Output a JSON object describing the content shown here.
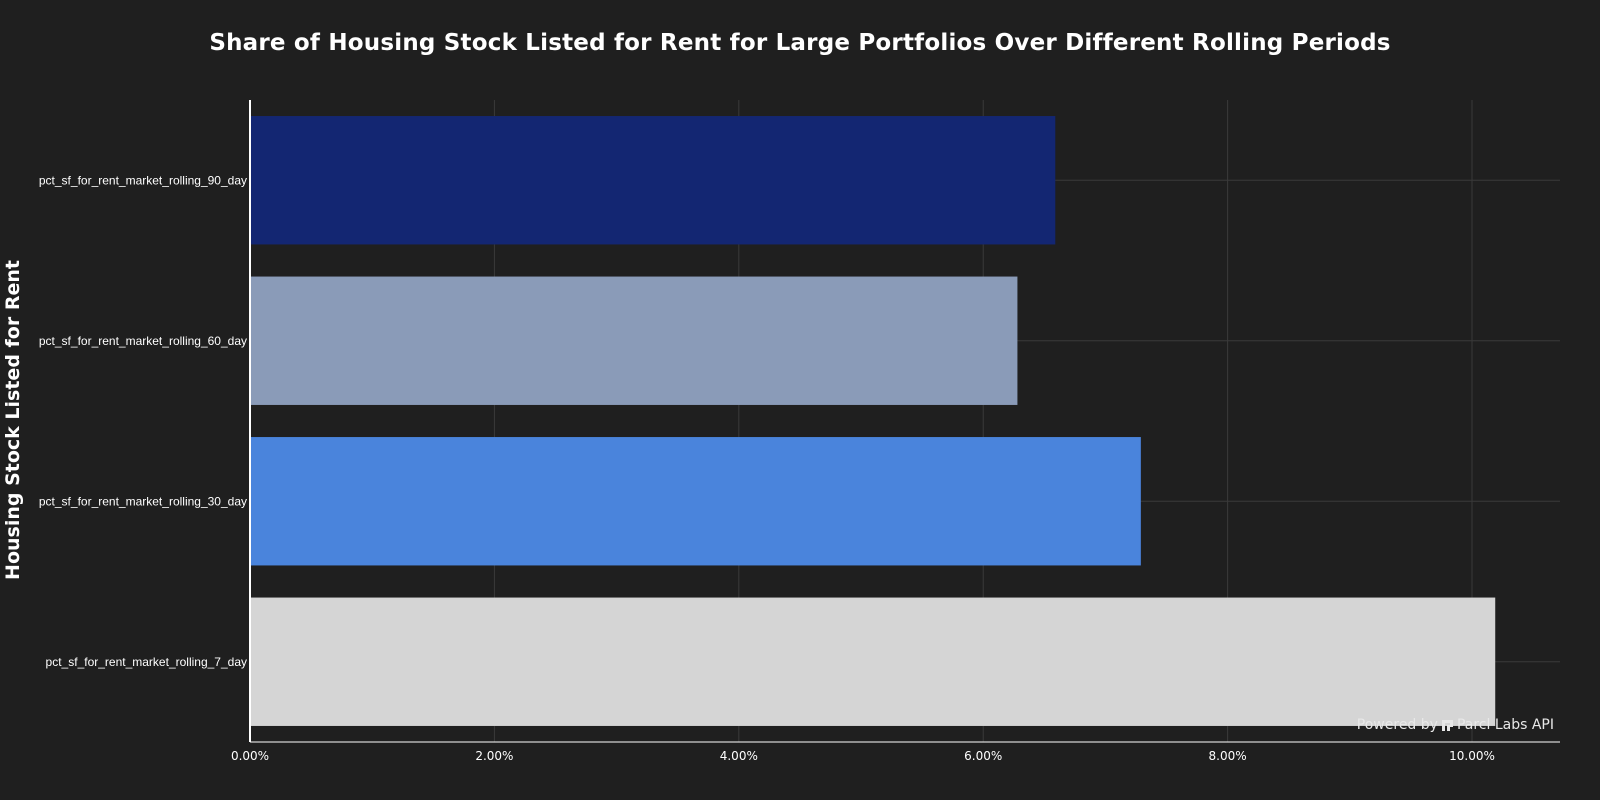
{
  "chart_data": {
    "type": "bar",
    "orientation": "horizontal",
    "title": "Share of Housing Stock Listed for Rent for Large Portfolios Over Different Rolling Periods",
    "xlabel": "",
    "ylabel": "Housing Stock Listed for Rent",
    "categories": [
      "pct_sf_for_rent_market_rolling_90_day",
      "pct_sf_for_rent_market_rolling_60_day",
      "pct_sf_for_rent_market_rolling_30_day",
      "pct_sf_for_rent_market_rolling_7_day"
    ],
    "values": [
      6.59,
      6.28,
      7.29,
      10.19
    ],
    "colors": [
      "#132672",
      "#8a9bb8",
      "#4a84dc",
      "#d5d5d5"
    ],
    "xlim": [
      0,
      10.72
    ],
    "xticks": [
      0,
      2,
      4,
      6,
      8,
      10
    ],
    "xtick_labels": [
      "0.00%",
      "2.00%",
      "4.00%",
      "6.00%",
      "8.00%",
      "10.00%"
    ],
    "grid": true
  },
  "watermark": {
    "prefix": "Powered by",
    "brand": "Parcl Labs API"
  }
}
